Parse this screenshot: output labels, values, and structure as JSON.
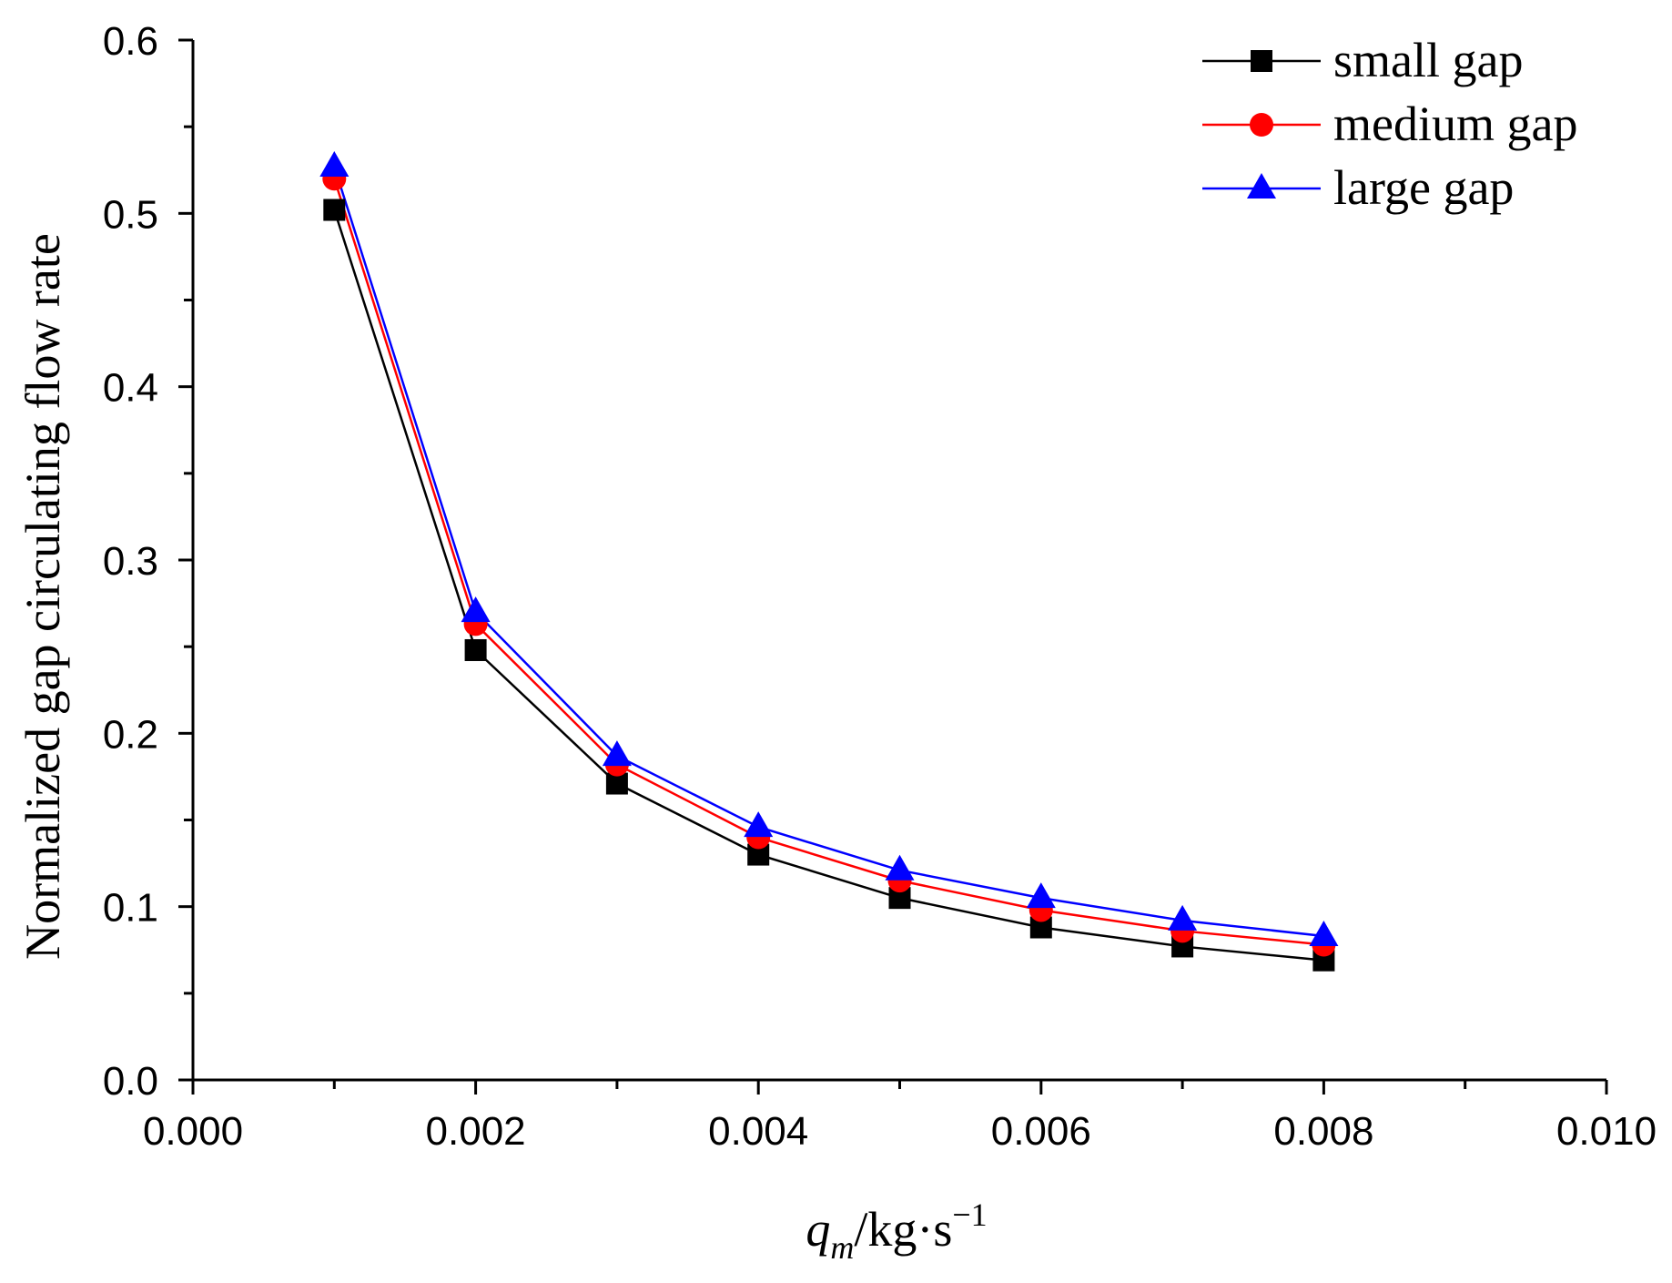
{
  "chart_data": {
    "type": "line",
    "title": "",
    "xlabel": {
      "symbol": "q",
      "subscript": "m",
      "unit": "/kg·s",
      "superscript": "−1"
    },
    "ylabel": "Normalized gap circulating flow rate",
    "xlim": [
      0.0,
      0.01
    ],
    "ylim": [
      0.0,
      0.6
    ],
    "x_ticks": [
      "0.000",
      "0.002",
      "0.004",
      "0.006",
      "0.008",
      "0.010"
    ],
    "y_ticks": [
      "0.0",
      "0.1",
      "0.2",
      "0.3",
      "0.4",
      "0.5",
      "0.6"
    ],
    "grid": false,
    "legend_position": "top-right",
    "x": [
      0.001,
      0.002,
      0.003,
      0.004,
      0.005,
      0.006,
      0.007,
      0.008
    ],
    "series": [
      {
        "name": "small gap",
        "color": "#000000",
        "marker": "square",
        "values": [
          0.502,
          0.248,
          0.171,
          0.13,
          0.105,
          0.088,
          0.077,
          0.069
        ]
      },
      {
        "name": "medium gap",
        "color": "#ff0000",
        "marker": "circle",
        "values": [
          0.52,
          0.263,
          0.182,
          0.14,
          0.115,
          0.098,
          0.086,
          0.078
        ]
      },
      {
        "name": "large gap",
        "color": "#0000ff",
        "marker": "triangle",
        "values": [
          0.527,
          0.27,
          0.187,
          0.146,
          0.121,
          0.105,
          0.092,
          0.083
        ]
      }
    ]
  }
}
